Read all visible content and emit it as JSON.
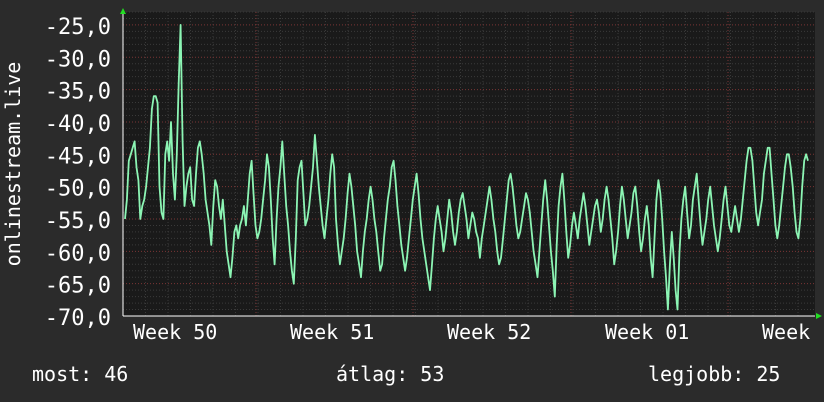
{
  "chart_data": {
    "type": "line",
    "ylabel": "onlinestream.live",
    "ylim": [
      -70,
      -23
    ],
    "y_ticks": [
      "-25,0",
      "-30,0",
      "-35,0",
      "-40,0",
      "-45,0",
      "-50,0",
      "-55,0",
      "-60,0",
      "-65,0",
      "-70,0"
    ],
    "y_tick_values": [
      -25,
      -30,
      -35,
      -40,
      -45,
      -50,
      -55,
      -60,
      -65,
      -70
    ],
    "x_ticks": [
      "Week 50",
      "Week 51",
      "Week 52",
      "Week 01",
      "Week"
    ],
    "grid": true,
    "series": [
      {
        "color": "#8cf5b4",
        "values": [
          -55,
          -52,
          -46,
          -45,
          -44,
          -43,
          -47,
          -49,
          -55,
          -53,
          -52,
          -50,
          -47,
          -44,
          -38,
          -36,
          -36,
          -37,
          -50,
          -54,
          -55,
          -45,
          -43,
          -46,
          -40,
          -48,
          -52,
          -45,
          -34,
          -25,
          -43,
          -53,
          -50,
          -48,
          -47,
          -52,
          -53,
          -48,
          -44,
          -43,
          -45,
          -48,
          -52,
          -54,
          -56,
          -59,
          -53,
          -49,
          -50,
          -53,
          -55,
          -52,
          -56,
          -60,
          -62,
          -64,
          -61,
          -57,
          -56,
          -58,
          -56,
          -55,
          -53,
          -56,
          -52,
          -48,
          -46,
          -51,
          -56,
          -58,
          -57,
          -55,
          -52,
          -49,
          -45,
          -47,
          -52,
          -58,
          -62,
          -55,
          -50,
          -47,
          -43,
          -48,
          -53,
          -56,
          -60,
          -63,
          -65,
          -58,
          -49,
          -47,
          -46,
          -51,
          -56,
          -55,
          -53,
          -50,
          -47,
          -42,
          -46,
          -50,
          -53,
          -56,
          -58,
          -55,
          -52,
          -48,
          -45,
          -47,
          -55,
          -59,
          -62,
          -60,
          -58,
          -55,
          -51,
          -48,
          -50,
          -53,
          -56,
          -60,
          -62,
          -64,
          -60,
          -57,
          -55,
          -52,
          -50,
          -52,
          -55,
          -57,
          -60,
          -63,
          -62,
          -58,
          -55,
          -52,
          -50,
          -47,
          -46,
          -49,
          -53,
          -56,
          -59,
          -61,
          -63,
          -61,
          -58,
          -55,
          -52,
          -50,
          -48,
          -51,
          -55,
          -58,
          -60,
          -62,
          -64,
          -66,
          -62,
          -58,
          -55,
          -53,
          -55,
          -57,
          -60,
          -58,
          -55,
          -52,
          -54,
          -57,
          -59,
          -57,
          -54,
          -52,
          -51,
          -53,
          -55,
          -58,
          -56,
          -54,
          -55,
          -57,
          -58,
          -61,
          -58,
          -56,
          -54,
          -52,
          -50,
          -52,
          -55,
          -57,
          -60,
          -62,
          -61,
          -58,
          -55,
          -52,
          -49,
          -48,
          -50,
          -53,
          -56,
          -58,
          -57,
          -55,
          -53,
          -51,
          -52,
          -54,
          -57,
          -60,
          -62,
          -64,
          -60,
          -56,
          -52,
          -49,
          -52,
          -56,
          -60,
          -63,
          -67,
          -59,
          -53,
          -50,
          -48,
          -52,
          -57,
          -61,
          -59,
          -56,
          -54,
          -56,
          -58,
          -55,
          -53,
          -51,
          -53,
          -56,
          -59,
          -57,
          -55,
          -53,
          -52,
          -54,
          -57,
          -55,
          -52,
          -50,
          -52,
          -55,
          -58,
          -62,
          -60,
          -57,
          -53,
          -50,
          -52,
          -55,
          -58,
          -56,
          -54,
          -51,
          -50,
          -53,
          -57,
          -60,
          -58,
          -55,
          -53,
          -56,
          -61,
          -64,
          -58,
          -52,
          -49,
          -51,
          -55,
          -60,
          -64,
          -69,
          -62,
          -57,
          -61,
          -66,
          -69,
          -60,
          -55,
          -52,
          -50,
          -54,
          -58,
          -56,
          -52,
          -50,
          -48,
          -52,
          -56,
          -59,
          -57,
          -55,
          -52,
          -50,
          -53,
          -56,
          -58,
          -60,
          -58,
          -55,
          -52,
          -50,
          -53,
          -56,
          -57,
          -55,
          -53,
          -55,
          -57,
          -55,
          -52,
          -49,
          -46,
          -44,
          -44,
          -46,
          -50,
          -54,
          -56,
          -54,
          -52,
          -48,
          -46,
          -44,
          -44,
          -48,
          -52,
          -56,
          -58,
          -56,
          -53,
          -50,
          -47,
          -45,
          -45,
          -47,
          -50,
          -54,
          -57,
          -58,
          -55,
          -50,
          -46,
          -45,
          -46
        ]
      }
    ]
  },
  "stats": {
    "current": "most: 46",
    "average": "átlag: 53",
    "best": "legjobb: 25"
  },
  "colors": {
    "background": "#2b2b2b",
    "plot": "#1a1a1a",
    "grid_minor": "#3a3a3a",
    "grid_major": "#7a3535",
    "axis_arrow": "#22dd22",
    "text": "#ffffff"
  }
}
